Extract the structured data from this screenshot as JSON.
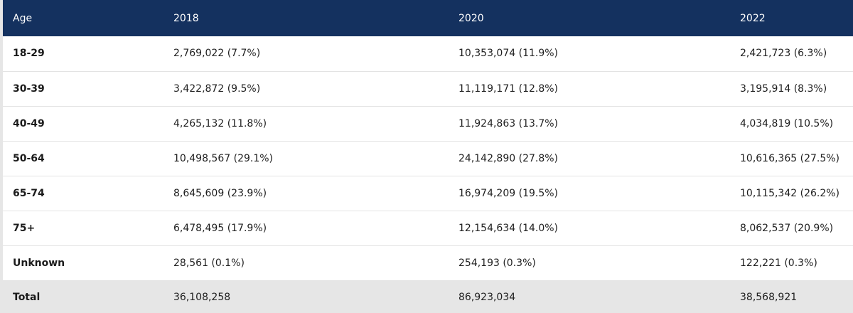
{
  "table": {
    "headers": [
      "Age",
      "2018",
      "2020",
      "2022"
    ],
    "rows": [
      {
        "label": "18-29",
        "cells": [
          "2,769,022 (7.7%)",
          "10,353,074 (11.9%)",
          "2,421,723 (6.3%)"
        ]
      },
      {
        "label": "30-39",
        "cells": [
          "3,422,872 (9.5%)",
          "11,119,171 (12.8%)",
          "3,195,914 (8.3%)"
        ]
      },
      {
        "label": "40-49",
        "cells": [
          "4,265,132 (11.8%)",
          "11,924,863 (13.7%)",
          "4,034,819 (10.5%)"
        ]
      },
      {
        "label": "50-64",
        "cells": [
          "10,498,567 (29.1%)",
          "24,142,890 (27.8%)",
          "10,616,365 (27.5%)"
        ]
      },
      {
        "label": "65-74",
        "cells": [
          "8,645,609 (23.9%)",
          "16,974,209 (19.5%)",
          "10,115,342 (26.2%)"
        ]
      },
      {
        "label": "75+",
        "cells": [
          "6,478,495 (17.9%)",
          "12,154,634 (14.0%)",
          "8,062,537 (20.9%)"
        ]
      },
      {
        "label": "Unknown",
        "cells": [
          "28,561 (0.1%)",
          "254,193 (0.3%)",
          "122,221 (0.3%)"
        ]
      }
    ],
    "total": {
      "label": "Total",
      "cells": [
        "36,108,258",
        "86,923,034",
        "38,568,921"
      ]
    }
  },
  "colors": {
    "header_bg": "#14315f",
    "header_text": "#ffffff",
    "total_bg": "#e6e6e6",
    "row_divider": "#e3e3e3"
  }
}
